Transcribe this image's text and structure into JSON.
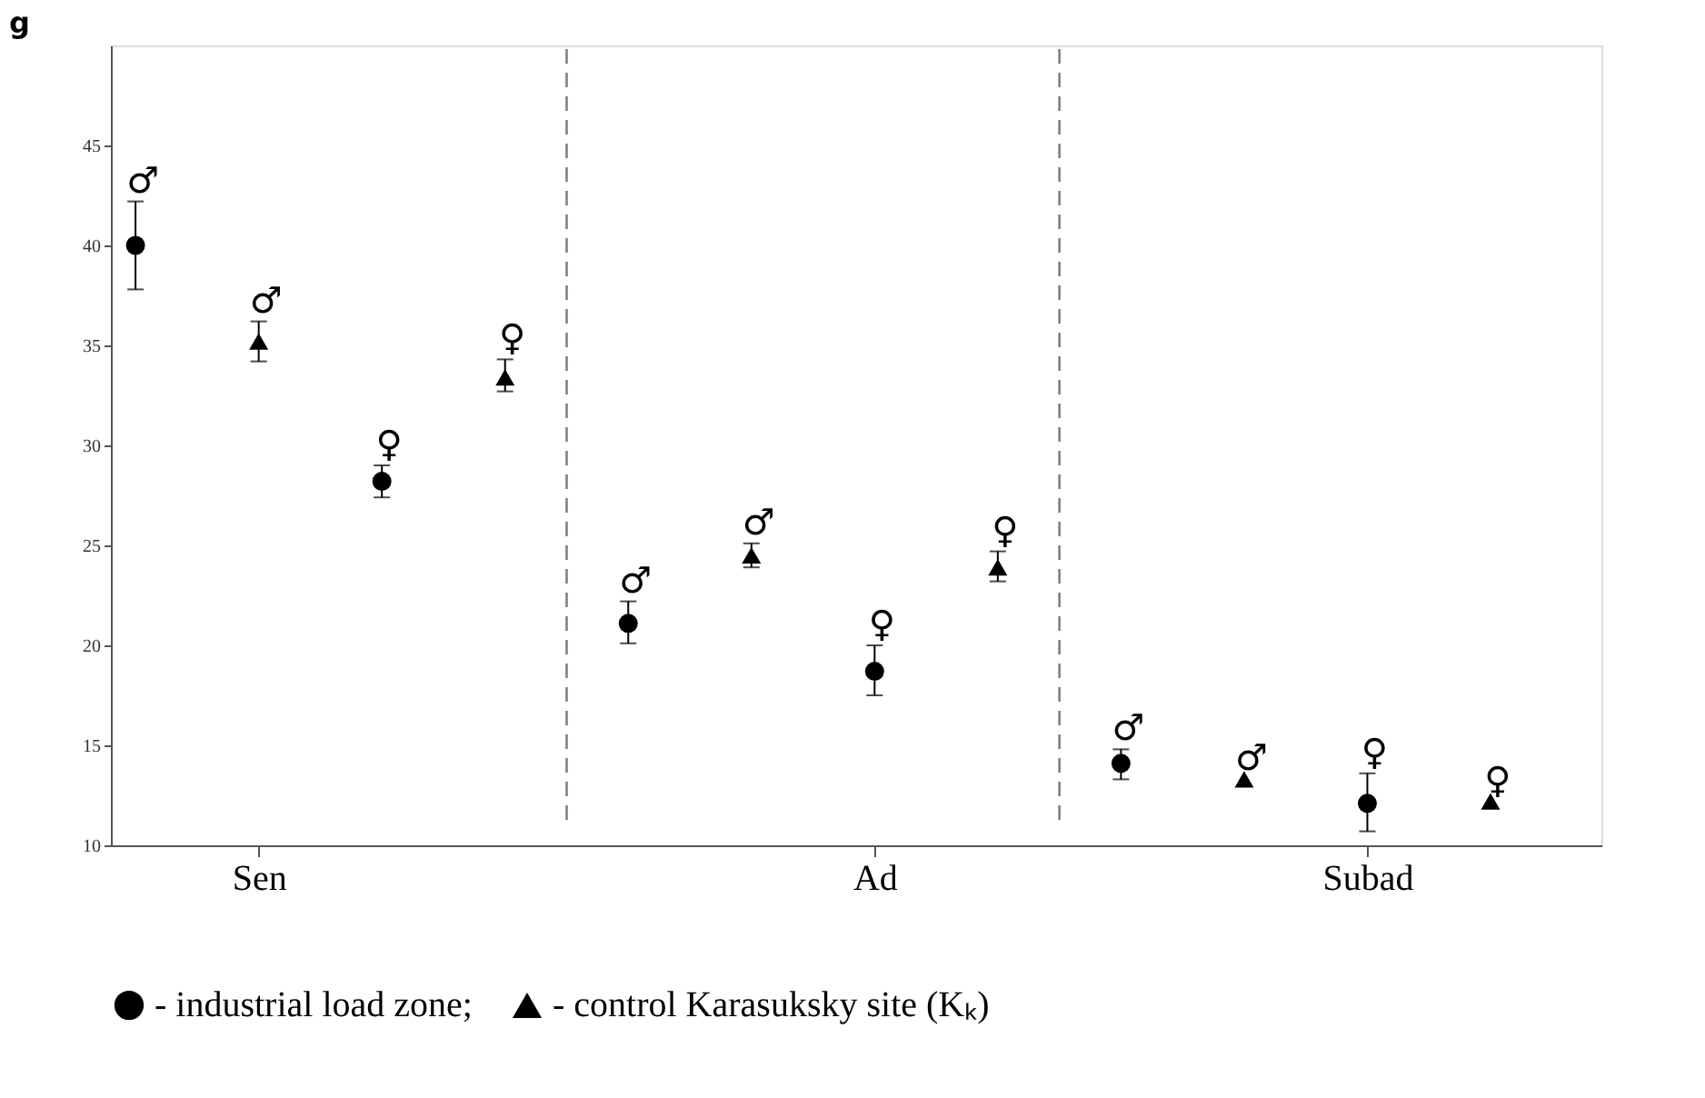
{
  "chart_data": {
    "type": "scatter",
    "title": "g",
    "categories": [
      null,
      "Sen",
      null,
      null,
      null,
      null,
      "Ad",
      null,
      null,
      null,
      "Subad",
      null
    ],
    "ylim": [
      10,
      50
    ],
    "yticks": [
      10,
      15,
      20,
      25,
      30,
      35,
      40,
      45
    ],
    "grid": false,
    "legend": "bottom",
    "series": [
      {
        "name": "- industrial load zone;",
        "color": "#000000",
        "marker": "circle",
        "values": [
          40.0,
          null,
          28.2,
          null,
          21.1,
          null,
          18.7,
          null,
          14.1,
          null,
          12.1,
          null
        ],
        "errors": [
          [
            37.8,
            42.2
          ],
          null,
          [
            27.4,
            29.0
          ],
          null,
          [
            20.1,
            22.2
          ],
          null,
          [
            17.5,
            20.0
          ],
          null,
          [
            13.3,
            14.8
          ],
          null,
          [
            10.7,
            13.6
          ],
          null
        ],
        "value_labels": [
          "♂",
          null,
          "♀",
          null,
          "♂",
          null,
          "♀",
          null,
          "♂",
          null,
          "♀",
          null
        ]
      },
      {
        "name": "- control Karasuksky site (Kₖ)",
        "color": "#000000",
        "marker": "triangle",
        "values": [
          null,
          35.2,
          null,
          33.4,
          null,
          24.5,
          null,
          23.9,
          null,
          13.3,
          null,
          12.2
        ],
        "errors": [
          null,
          [
            34.2,
            36.2
          ],
          null,
          [
            32.7,
            34.3
          ],
          null,
          [
            23.9,
            25.1
          ],
          null,
          [
            23.2,
            24.7
          ],
          null,
          null,
          null,
          null
        ],
        "value_labels": [
          null,
          "♂",
          null,
          "♀",
          null,
          "♂",
          null,
          "♀",
          null,
          "♂",
          null,
          "♀"
        ]
      }
    ]
  }
}
